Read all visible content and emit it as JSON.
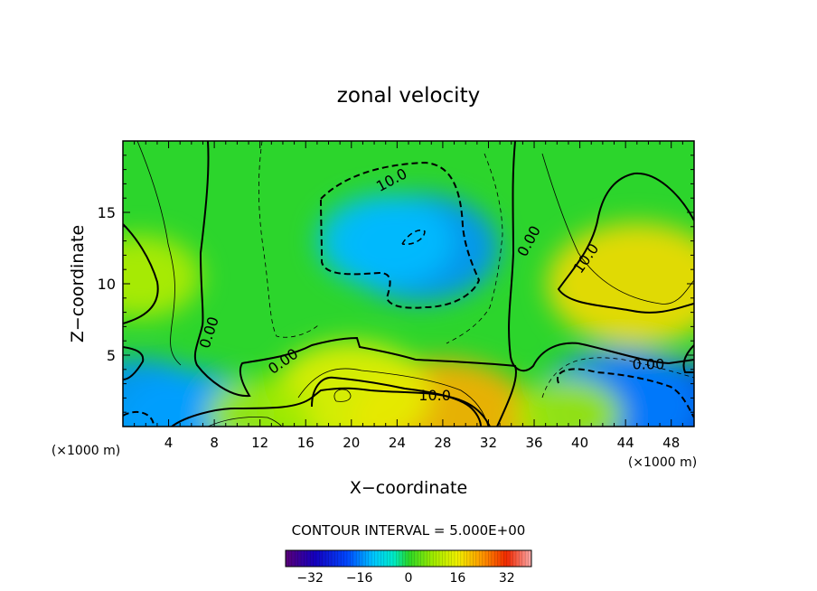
{
  "chart_data": {
    "type": "heatmap",
    "title": "zonal velocity",
    "xlabel": "X−coordinate",
    "ylabel": "Z−coordinate",
    "x_unit_left": "(×1000 m)",
    "x_unit_right": "(×1000 m)",
    "xlim": [
      0,
      50
    ],
    "ylim": [
      0,
      20
    ],
    "x_ticks": [
      4,
      8,
      12,
      16,
      20,
      24,
      28,
      32,
      36,
      40,
      44,
      48
    ],
    "y_ticks": [
      5,
      10,
      15
    ],
    "x_tick_labels": [
      "4",
      "8",
      "12",
      "16",
      "20",
      "24",
      "28",
      "32",
      "36",
      "40",
      "44",
      "48"
    ],
    "y_tick_labels": [
      "5",
      "10",
      "15"
    ],
    "contour_interval_text": "CONTOUR INTERVAL = 5.000E+00",
    "contour_interval": 5.0,
    "colorbar": {
      "range": [
        -40,
        40
      ],
      "tick_values": [
        -32,
        -16,
        0,
        16,
        32
      ],
      "tick_labels": [
        "−32",
        "−16",
        "0",
        "16",
        "32"
      ]
    },
    "contour_labels": [
      {
        "text": "10.0",
        "x": 23.5,
        "y": 17.3,
        "angle": -28
      },
      {
        "text": "0.00",
        "x": 35.5,
        "y": 13.0,
        "angle": -62
      },
      {
        "text": "10.0",
        "x": 40.5,
        "y": 11.8,
        "angle": -55
      },
      {
        "text": "0.00",
        "x": 7.5,
        "y": 6.6,
        "angle": -72
      },
      {
        "text": "0.00",
        "x": 14.0,
        "y": 4.6,
        "angle": -35
      },
      {
        "text": "0.00",
        "x": 46.0,
        "y": 4.4,
        "angle": 0
      },
      {
        "text": "10.0",
        "x": 27.3,
        "y": 2.2,
        "angle": 0
      }
    ],
    "value_centers": [
      {
        "x": 26,
        "y": 12.5,
        "value": -15
      },
      {
        "x": 23,
        "y": 13,
        "value": -12
      },
      {
        "x": 45,
        "y": 10,
        "value": 18
      },
      {
        "x": 1.5,
        "y": 10.5,
        "value": 10
      },
      {
        "x": 28,
        "y": 0.3,
        "value": 22
      },
      {
        "x": 20,
        "y": 2.2,
        "value": 15
      },
      {
        "x": 47,
        "y": 0.3,
        "value": -25
      },
      {
        "x": 43.5,
        "y": 1.5,
        "value": -16
      },
      {
        "x": 1.5,
        "y": 1.0,
        "value": -15
      },
      {
        "x": 6,
        "y": 0.4,
        "value": -14
      },
      {
        "x": 12,
        "y": 0.8,
        "value": 8
      },
      {
        "x": 39,
        "y": 0.8,
        "value": 8
      }
    ]
  }
}
